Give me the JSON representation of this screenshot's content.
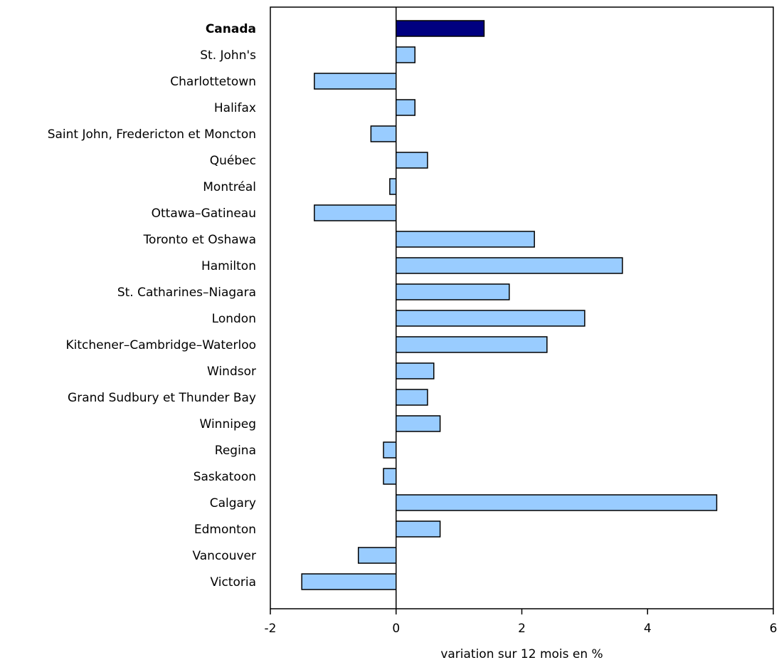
{
  "chart_data": {
    "type": "bar",
    "orientation": "horizontal",
    "title": "",
    "xlabel": "variation sur 12 mois en %",
    "ylabel": "",
    "xlim": [
      -2,
      6
    ],
    "xticks": [
      -2,
      0,
      2,
      4,
      6
    ],
    "grid": false,
    "legend": "none",
    "categories": [
      "Canada",
      "St. John's",
      "Charlottetown",
      "Halifax",
      "Saint John, Fredericton et Moncton",
      "Québec",
      "Montréal",
      "Ottawa–Gatineau",
      "Toronto et Oshawa",
      "Hamilton",
      "St. Catharines–Niagara",
      "London",
      "Kitchener–Cambridge–Waterloo",
      "Windsor",
      "Grand Sudbury et Thunder Bay",
      "Winnipeg",
      "Regina",
      "Saskatoon",
      "Calgary",
      "Edmonton",
      "Vancouver",
      "Victoria"
    ],
    "values": [
      1.4,
      0.3,
      -1.3,
      0.3,
      -0.4,
      0.5,
      -0.1,
      -1.3,
      2.2,
      3.6,
      1.8,
      3.0,
      2.4,
      0.6,
      0.5,
      0.7,
      -0.2,
      -0.2,
      5.1,
      0.7,
      -0.6,
      -1.5
    ],
    "highlight_category": "Canada",
    "colors": {
      "highlight_bar": "#000080",
      "bar": "#99ccff",
      "bar_stroke": "#000000",
      "axis": "#000000"
    }
  }
}
